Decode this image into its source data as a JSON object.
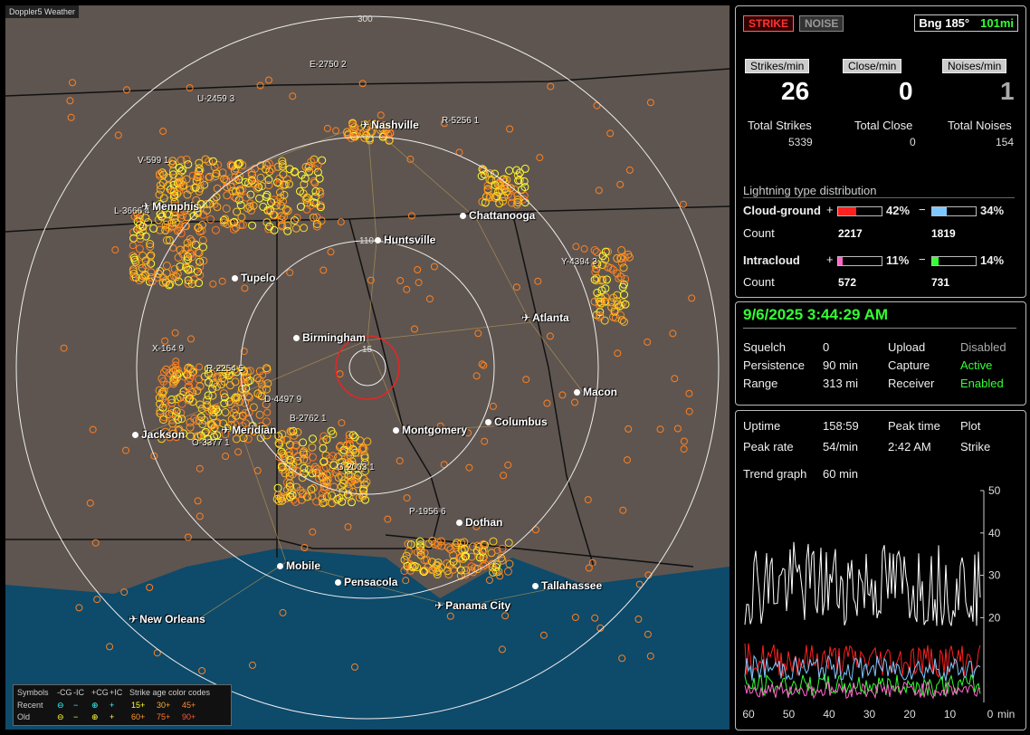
{
  "map": {
    "title": "Doppler5 Weather",
    "ring_labels": [
      "300",
      "110",
      "15"
    ],
    "cities": [
      {
        "name": "Nashville",
        "type": "airport"
      },
      {
        "name": "Memphis",
        "type": "airport"
      },
      {
        "name": "Chattanooga",
        "type": "city"
      },
      {
        "name": "Huntsville",
        "type": "city"
      },
      {
        "name": "Tupelo",
        "type": "city"
      },
      {
        "name": "Atlanta",
        "type": "airport"
      },
      {
        "name": "Birmingham",
        "type": "city"
      },
      {
        "name": "Macon",
        "type": "city"
      },
      {
        "name": "Jackson",
        "type": "city"
      },
      {
        "name": "Meridian",
        "type": "airport"
      },
      {
        "name": "Montgomery",
        "type": "city"
      },
      {
        "name": "Columbus",
        "type": "city"
      },
      {
        "name": "Dothan",
        "type": "city"
      },
      {
        "name": "Mobile",
        "type": "city"
      },
      {
        "name": "Pensacola",
        "type": "city"
      },
      {
        "name": "Tallahassee",
        "type": "city"
      },
      {
        "name": "Panama City",
        "type": "airport"
      },
      {
        "name": "New Orleans",
        "type": "airport"
      }
    ],
    "storms": [
      "E-2750 2",
      "U-2459 3",
      "R-5256 1",
      "V-599 1",
      "L-3666 4",
      "Y-4394 3",
      "X-164 9",
      "R-2254 5",
      "D-4497 9",
      "B-2762 1",
      "O-3377 1",
      "G-2003 1",
      "P-1956 6"
    ],
    "legend": {
      "symbols_label": "Symbols",
      "headers": [
        "-CG",
        "-IC",
        "+CG",
        "+IC"
      ],
      "age_label": "Strike age color codes",
      "recent_label": "Recent",
      "old_label": "Old",
      "recent_ages": [
        "15+",
        "30+",
        "45+"
      ],
      "old_ages": [
        "60+",
        "75+",
        "90+"
      ]
    }
  },
  "status": {
    "strike_btn": "STRIKE",
    "noise_btn": "NOISE",
    "bearing": "Bng 185°",
    "distance": "101mi",
    "rate_headers": [
      "Strikes/min",
      "Close/min",
      "Noises/min"
    ],
    "rates": [
      "26",
      "0",
      "1"
    ],
    "total_labels": [
      "Total Strikes",
      "Total Close",
      "Total Noises"
    ],
    "totals": [
      "5339",
      "0",
      "154"
    ],
    "dist_title": "Lightning type distribution",
    "cg_label": "Cloud-ground",
    "ic_label": "Intracloud",
    "count_label": "Count",
    "plus": "+",
    "minus": "−",
    "cg_pos_pct": "42%",
    "cg_neg_pct": "34%",
    "ic_pos_pct": "11%",
    "ic_neg_pct": "14%",
    "cg_pos_frac": 0.42,
    "cg_neg_frac": 0.34,
    "ic_pos_frac": 0.11,
    "ic_neg_frac": 0.14,
    "cg_pos_count": "2217",
    "cg_neg_count": "1819",
    "ic_pos_count": "572",
    "ic_neg_count": "731"
  },
  "settings": {
    "datetime": "9/6/2025 3:44:29 AM",
    "squelch_label": "Squelch",
    "squelch": "0",
    "persist_label": "Persistence",
    "persist": "90 min",
    "range_label": "Range",
    "range": "313 mi",
    "upload_label": "Upload",
    "upload": "Disabled",
    "capture_label": "Capture",
    "capture": "Active",
    "receiver_label": "Receiver",
    "receiver": "Enabled"
  },
  "stats": {
    "uptime_label": "Uptime",
    "uptime": "158:59",
    "peak_time_label": "Peak time",
    "peak_time": "2:42 AM",
    "plot_label": "Plot",
    "plot": "Strike",
    "peak_rate_label": "Peak rate",
    "peak_rate": "54/min",
    "trend_label": "Trend graph",
    "trend": "60 min",
    "x_ticks": [
      "60",
      "50",
      "40",
      "30",
      "20",
      "10",
      "0"
    ],
    "x_unit": "min",
    "y_ticks": [
      "50",
      "40",
      "30",
      "20"
    ]
  },
  "colors": {
    "map_bg": "#5e5550",
    "water": "#0e4a6a",
    "recent": "#ffff33",
    "old": "#ff8c1a",
    "cg_pos": "#ff2020",
    "cg_neg": "#7ec8ff",
    "ic_pos": "#ff66cc",
    "ic_neg": "#33ff33",
    "accent_green": "#33ff33"
  }
}
